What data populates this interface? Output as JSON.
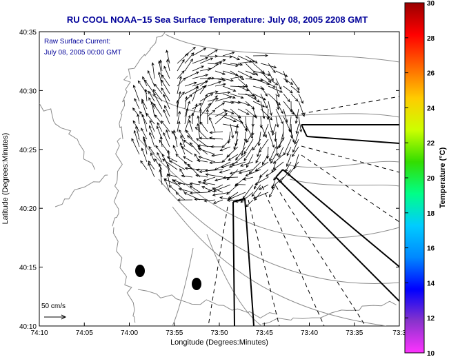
{
  "chart_data": {
    "type": "map",
    "title": "RU COOL  NOAA−15  Sea Surface Temperature:  July 08, 2005 2208 GMT",
    "overlay_label_line1": "Raw Surface Current:",
    "overlay_label_line2": "July 08, 2005 00:00 GMT",
    "xlabel": "Longitude (Degrees:Minutes)",
    "ylabel": "Latitude (Degrees:Minutes)",
    "x_ticks": [
      "74:10",
      "74:05",
      "74:00",
      "73:55",
      "73:50",
      "73:45",
      "73:40",
      "73:35",
      "73:3"
    ],
    "y_ticks": [
      "40:10",
      "40:15",
      "40:20",
      "40:25",
      "40:30",
      "40:35"
    ],
    "colorbar": {
      "label": "Temperature (°C)",
      "min": 10,
      "max": 30,
      "ticks": [
        "10",
        "12",
        "14",
        "16",
        "18",
        "20",
        "22",
        "24",
        "26",
        "28",
        "30"
      ],
      "colors": [
        "#ff33ff",
        "#8833cc",
        "#0000ff",
        "#0088ff",
        "#00ccff",
        "#00ff88",
        "#33dd00",
        "#ccff00",
        "#ffcc00",
        "#ff6600",
        "#ff0000",
        "#990000"
      ]
    },
    "scale_arrow_label": "50 cm/s",
    "line_color": "#000000",
    "contour_color": "#8a8a8a",
    "title_color": "#000099"
  }
}
